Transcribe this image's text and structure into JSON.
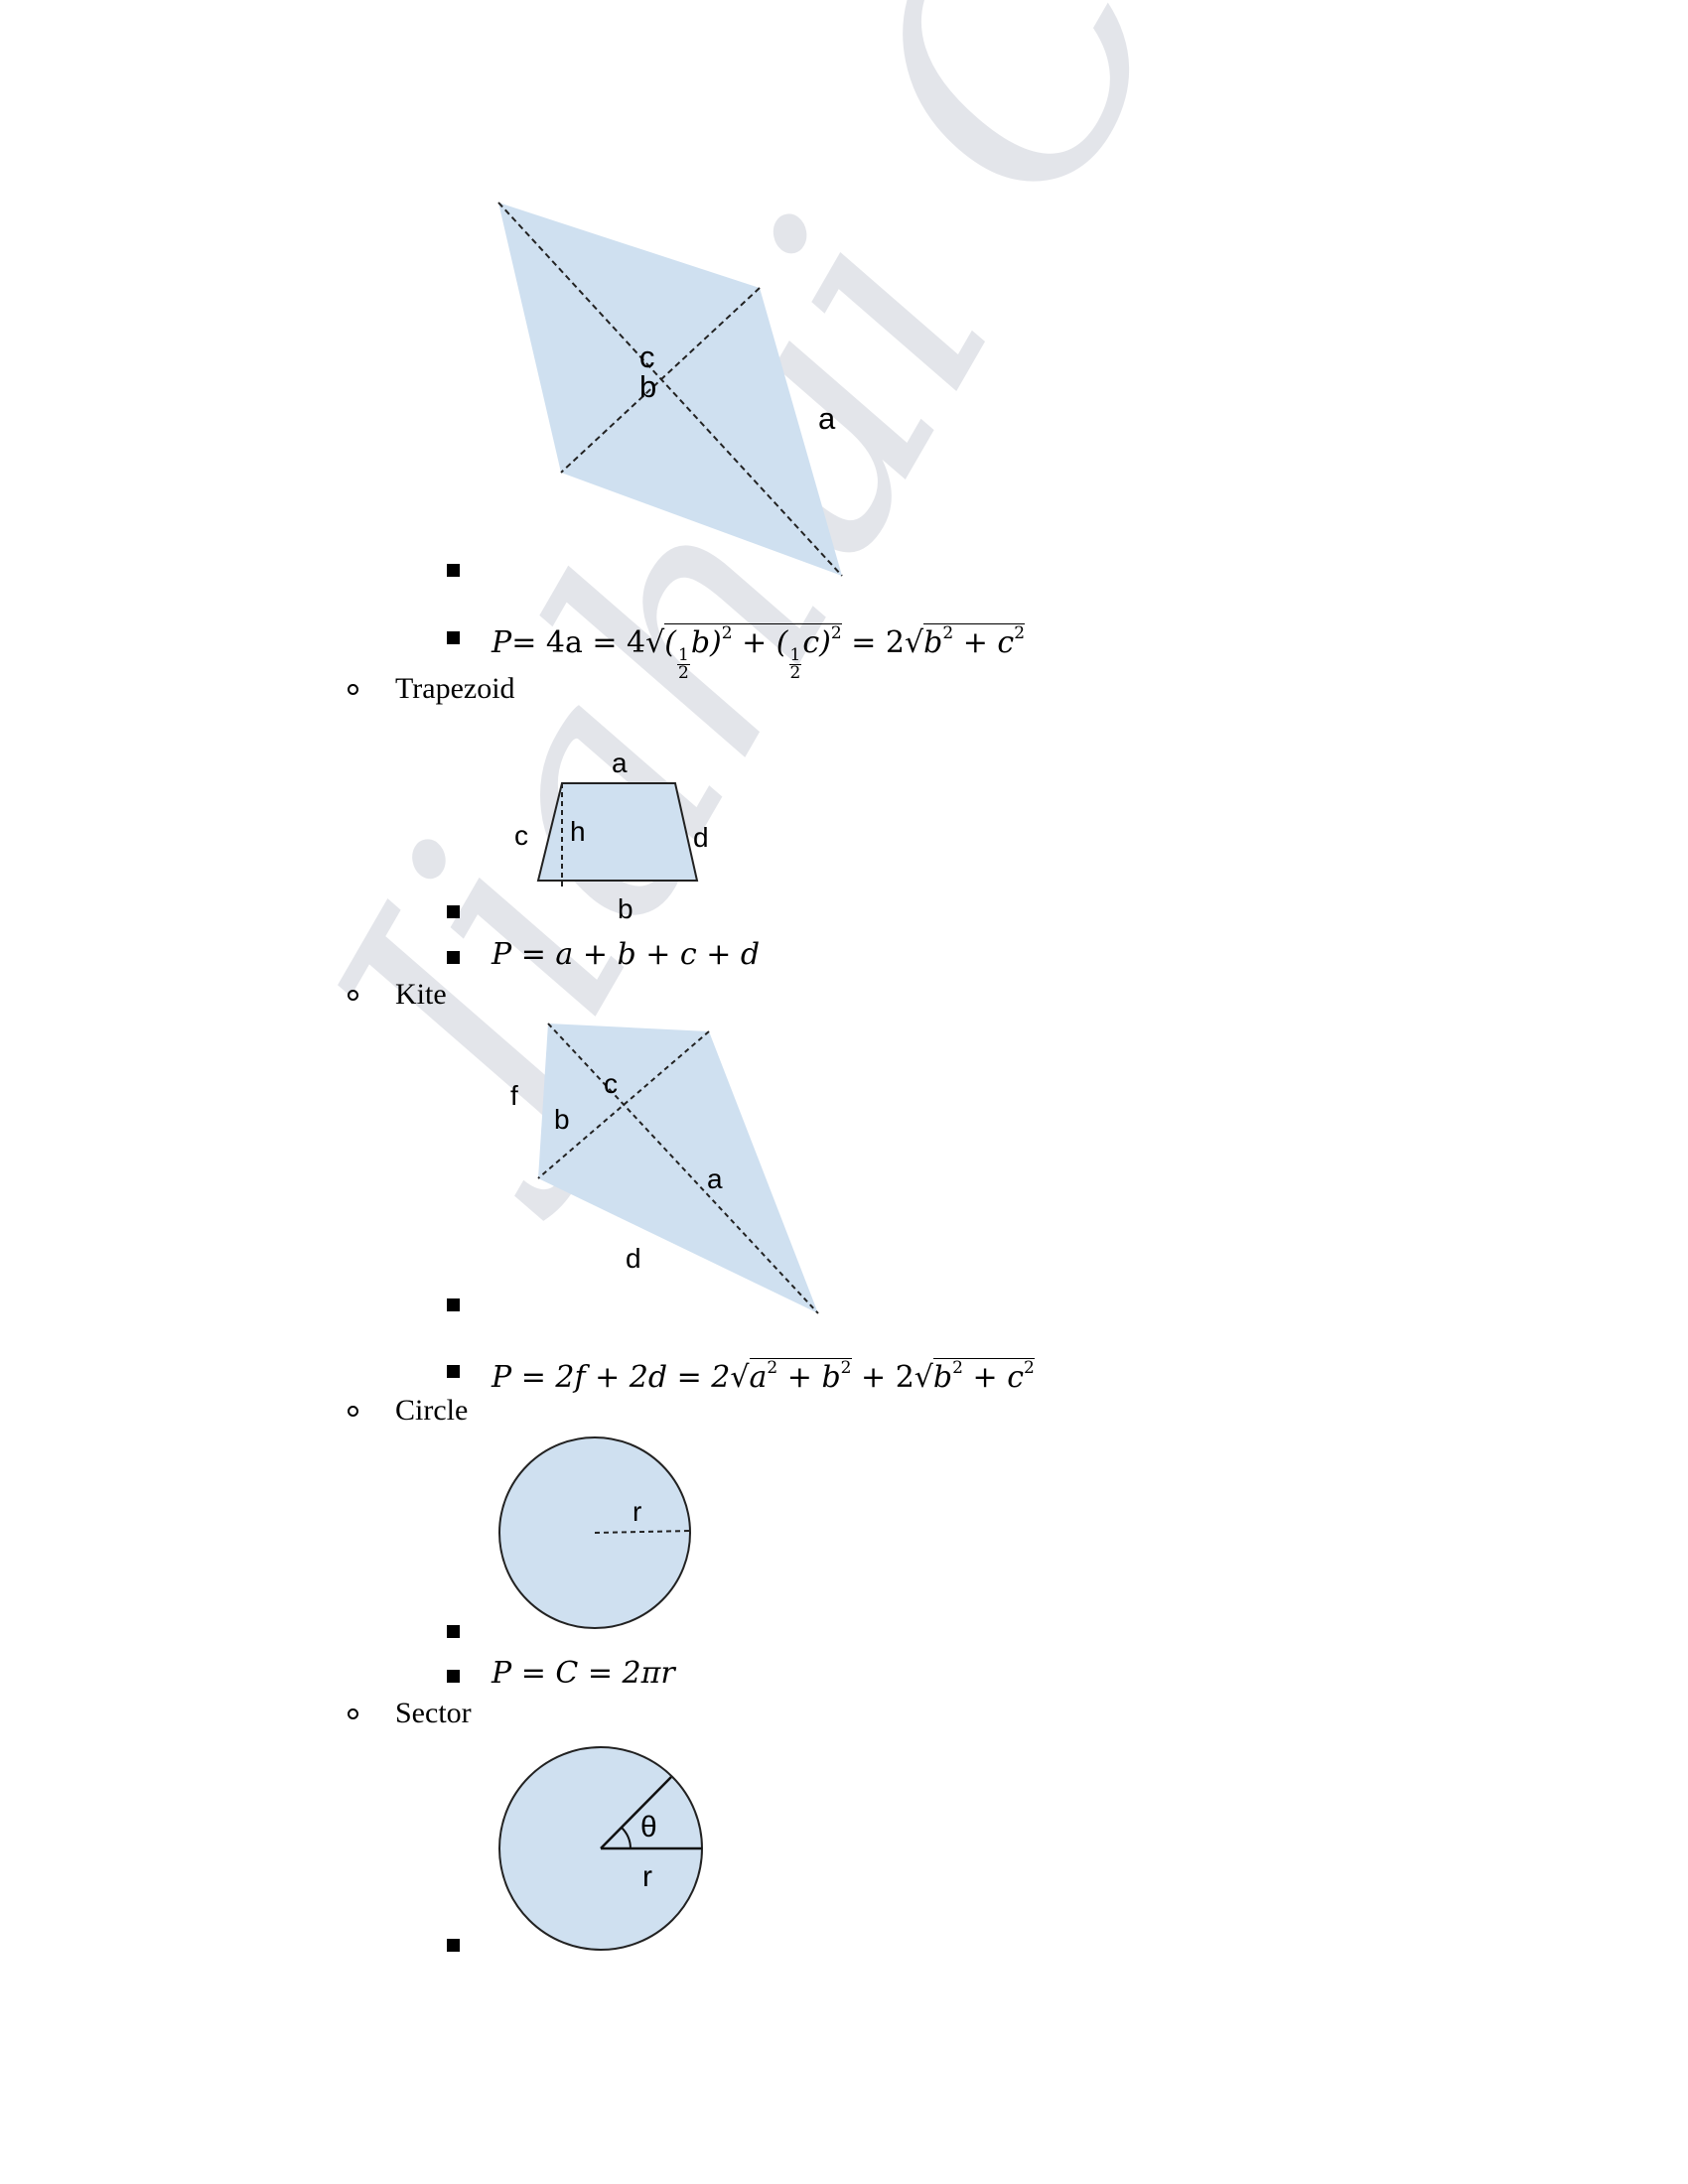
{
  "rhombus": {
    "labels": {
      "a": "a",
      "b": "b",
      "c": "c"
    },
    "formula": {
      "lhs": "P",
      "eq1": "= 4a = 4",
      "half1": "1",
      "half1_den": "2",
      "b": "b",
      "half2": "1",
      "half2_den": "2",
      "c": "c",
      "exp": "2",
      "plus": " + ",
      "eq2": " = 2",
      "root_b": "b",
      "root_c": "c"
    }
  },
  "trapezoid": {
    "heading": "Trapezoid",
    "labels": {
      "a": "a",
      "b": "b",
      "c": "c",
      "d": "d",
      "h": "h"
    },
    "formula": "P = a + b + c + d"
  },
  "kite": {
    "heading": "Kite",
    "labels": {
      "a": "a",
      "b": "b",
      "c": "c",
      "d": "d",
      "f": "f"
    },
    "formula": {
      "lhs": "P = 2f + 2d = 2",
      "root1_a": "a",
      "root1_b": "b",
      "plus": " + 2",
      "root2_b": "b",
      "root2_c": "c",
      "exp": "2"
    }
  },
  "circle": {
    "heading": "Circle",
    "labels": {
      "r": "r"
    },
    "formula": "P = C = 2πr"
  },
  "sector": {
    "heading": "Sector",
    "labels": {
      "r": "r",
      "theta": "θ"
    }
  },
  "watermark": "Jiahui Cai",
  "colors": {
    "fill": "#cfe0f0",
    "stroke": "#1a1a1a",
    "watermark": "#c9ccd6"
  }
}
